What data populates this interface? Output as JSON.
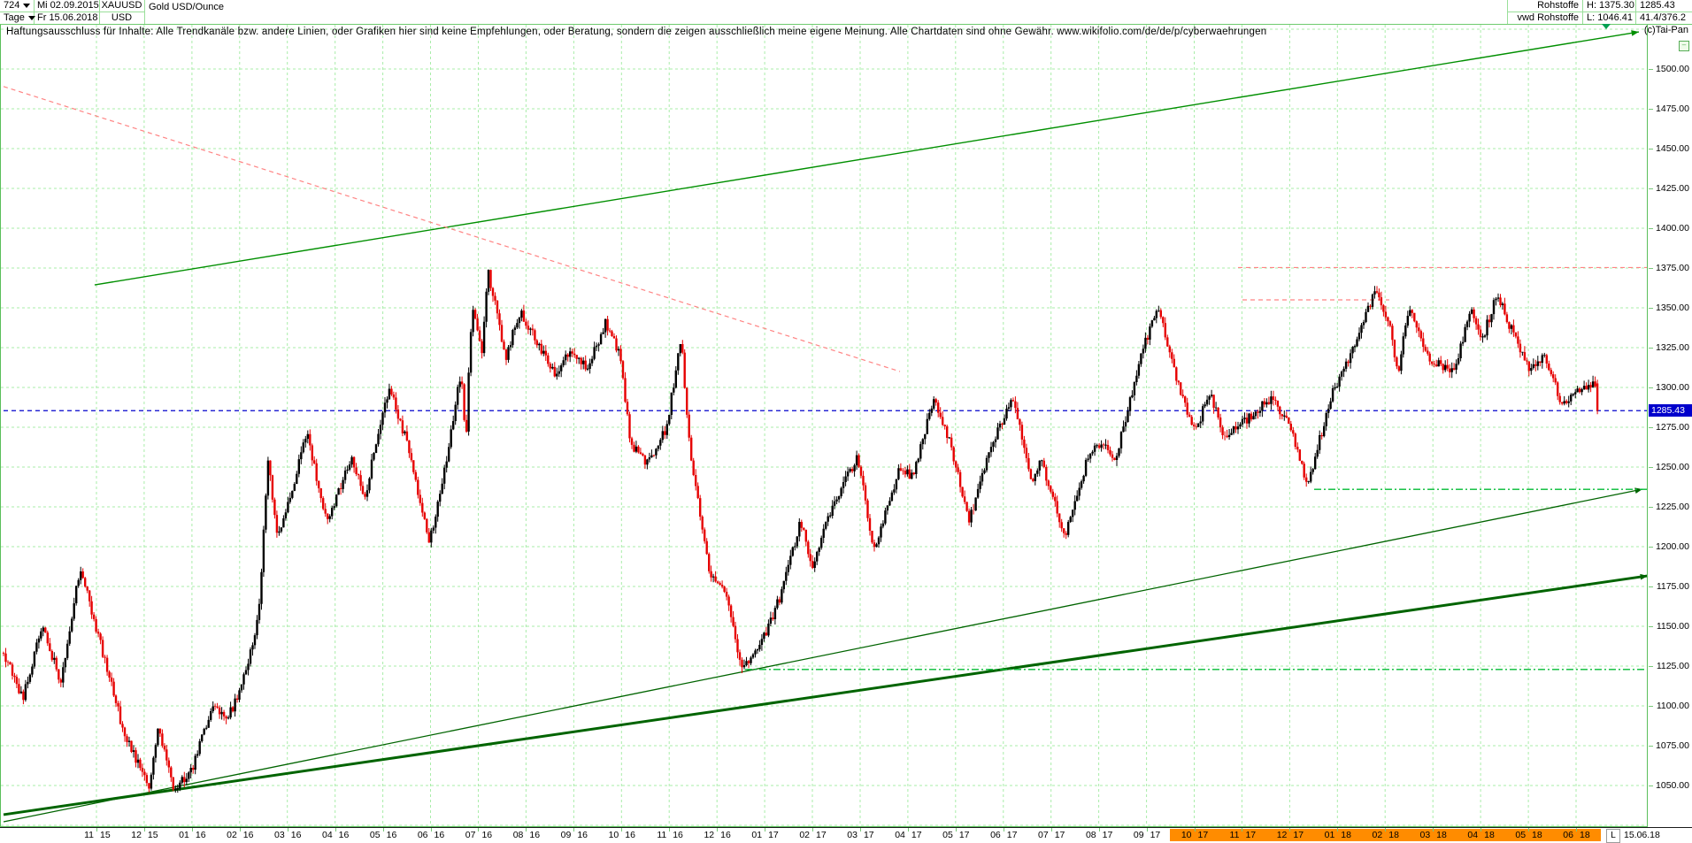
{
  "header": {
    "bars_count": "724",
    "period": "Tage",
    "date_from": "Mi 02.09.2015",
    "date_to": "Fr 15.06.2018",
    "symbol": "XAUUSD",
    "currency": "USD",
    "title": "Gold USD/Ounce",
    "group_row1": "Rohstoffe",
    "group_row2": "vwd Rohstoffe",
    "high_label": "H: 1375.30",
    "low_label": "L: 1046.41",
    "last_price": "1285.43",
    "misc_value": "41.4/376.2",
    "copyright": "(c)Tai-Pan"
  },
  "disclaimer": "Haftungsausschluss für Inhalte: Alle Trendkanäle bzw. andere Linien, oder Grafiken hier sind keine Empfehlungen, oder Beratung, sondern die zeigen ausschließlich meine eigene Meinung. Alle Chartdaten sind ohne Gewähr.  www.wikifolio.com/de/de/p/cyberwaehrungen",
  "axis": {
    "price_labels": [
      "1500.00",
      "1475.00",
      "1450.00",
      "1425.00",
      "1400.00",
      "1375.00",
      "1350.00",
      "1325.00",
      "1300.00",
      "1275.00",
      "1250.00",
      "1225.00",
      "1200.00",
      "1175.00",
      "1150.00",
      "1125.00",
      "1100.00",
      "1075.00",
      "1050.00"
    ],
    "month_labels": [
      "11 15",
      "12 15",
      "01 16",
      "02 16",
      "03 16",
      "04 16",
      "05 16",
      "06 16",
      "07 16",
      "08 16",
      "09 16",
      "10 16",
      "11 16",
      "12 16",
      "01 17",
      "02 17",
      "03 17",
      "04 17",
      "05 17",
      "06 17",
      "07 17",
      "08 17",
      "09 17",
      "10 17",
      "11 17",
      "12 17",
      "01 18",
      "02 18",
      "03 18",
      "04 18",
      "05 18",
      "06 18"
    ],
    "highlight_from_index": 23,
    "end_date": "15.06.18",
    "low_marker": "L",
    "last_price_label": "1285.43"
  },
  "colors": {
    "grid": "#a9eda9",
    "frame": "#5abf5a",
    "candle_up": "#000000",
    "candle_down": "#e60000",
    "trend_green": "#008f00",
    "trend_dark_green": "#006400",
    "dashdot_green": "#00bb33",
    "red_dashed": "#ff8484",
    "blue_line": "#0000cc",
    "blue_label_bg": "#0000cc",
    "orange_highlight": "#ff8c00"
  },
  "chart_data": {
    "type": "candlestick",
    "instrument": "XAUUSD",
    "title": "Gold USD/Ounce",
    "timeframe": "Tage",
    "date_start": "02.09.2015",
    "date_end": "15.06.2018",
    "bars": 724,
    "period_high": 1375.3,
    "period_low": 1046.41,
    "last_close": 1285.43,
    "y_axis": {
      "min": 1025,
      "max": 1530,
      "tick_step": 25,
      "grid": true
    },
    "price_path": [
      [
        0,
        1133
      ],
      [
        0.012,
        1104
      ],
      [
        0.024,
        1151
      ],
      [
        0.036,
        1115
      ],
      [
        0.048,
        1188
      ],
      [
        0.06,
        1142
      ],
      [
        0.075,
        1085
      ],
      [
        0.091,
        1048
      ],
      [
        0.097,
        1085
      ],
      [
        0.107,
        1047
      ],
      [
        0.119,
        1062
      ],
      [
        0.131,
        1100
      ],
      [
        0.14,
        1090
      ],
      [
        0.152,
        1120
      ],
      [
        0.16,
        1155
      ],
      [
        0.166,
        1255
      ],
      [
        0.172,
        1205
      ],
      [
        0.182,
        1240
      ],
      [
        0.19,
        1272
      ],
      [
        0.203,
        1215
      ],
      [
        0.218,
        1255
      ],
      [
        0.227,
        1232
      ],
      [
        0.239,
        1292
      ],
      [
        0.243,
        1298
      ],
      [
        0.254,
        1262
      ],
      [
        0.267,
        1202
      ],
      [
        0.278,
        1255
      ],
      [
        0.287,
        1310
      ],
      [
        0.29,
        1265
      ],
      [
        0.294,
        1355
      ],
      [
        0.3,
        1322
      ],
      [
        0.304,
        1374
      ],
      [
        0.315,
        1318
      ],
      [
        0.324,
        1348
      ],
      [
        0.337,
        1325
      ],
      [
        0.346,
        1308
      ],
      [
        0.355,
        1323
      ],
      [
        0.366,
        1312
      ],
      [
        0.378,
        1341
      ],
      [
        0.387,
        1320
      ],
      [
        0.393,
        1266
      ],
      [
        0.404,
        1252
      ],
      [
        0.416,
        1274
      ],
      [
        0.425,
        1332
      ],
      [
        0.431,
        1255
      ],
      [
        0.443,
        1185
      ],
      [
        0.454,
        1168
      ],
      [
        0.463,
        1123
      ],
      [
        0.476,
        1140
      ],
      [
        0.487,
        1168
      ],
      [
        0.5,
        1216
      ],
      [
        0.507,
        1188
      ],
      [
        0.521,
        1228
      ],
      [
        0.536,
        1256
      ],
      [
        0.546,
        1198
      ],
      [
        0.563,
        1251
      ],
      [
        0.57,
        1244
      ],
      [
        0.584,
        1293
      ],
      [
        0.594,
        1264
      ],
      [
        0.606,
        1216
      ],
      [
        0.619,
        1262
      ],
      [
        0.633,
        1294
      ],
      [
        0.645,
        1242
      ],
      [
        0.651,
        1254
      ],
      [
        0.666,
        1206
      ],
      [
        0.682,
        1262
      ],
      [
        0.69,
        1266
      ],
      [
        0.697,
        1252
      ],
      [
        0.715,
        1324
      ],
      [
        0.724,
        1352
      ],
      [
        0.739,
        1294
      ],
      [
        0.748,
        1273
      ],
      [
        0.757,
        1298
      ],
      [
        0.766,
        1268
      ],
      [
        0.778,
        1278
      ],
      [
        0.796,
        1294
      ],
      [
        0.807,
        1276
      ],
      [
        0.818,
        1238
      ],
      [
        0.834,
        1298
      ],
      [
        0.846,
        1322
      ],
      [
        0.86,
        1360
      ],
      [
        0.869,
        1342
      ],
      [
        0.875,
        1309
      ],
      [
        0.882,
        1352
      ],
      [
        0.894,
        1317
      ],
      [
        0.91,
        1311
      ],
      [
        0.921,
        1350
      ],
      [
        0.927,
        1328
      ],
      [
        0.937,
        1358
      ],
      [
        0.948,
        1332
      ],
      [
        0.957,
        1312
      ],
      [
        0.966,
        1320
      ],
      [
        0.978,
        1289
      ],
      [
        0.987,
        1299
      ],
      [
        0.996,
        1300
      ],
      [
        0.9985,
        1303
      ],
      [
        1,
        1285.43
      ]
    ],
    "trendlines": [
      {
        "name": "upper-channel-line",
        "style": "solid",
        "width": 1.4,
        "color": "#008f00",
        "arrow": true,
        "points": [
          [
            0.0554,
            1364.4
          ],
          [
            0.9946,
            1523.3
          ]
        ]
      },
      {
        "name": "lower-support-thin",
        "style": "solid",
        "width": 1.3,
        "color": "#006400",
        "arrow": true,
        "points": [
          [
            0.0,
            1027.2
          ],
          [
            0.9968,
            1236.1
          ]
        ]
      },
      {
        "name": "long-term-support-thick",
        "style": "solid",
        "width": 3,
        "color": "#006400",
        "arrow": true,
        "points": [
          [
            0.0,
            1031.7
          ],
          [
            1.0,
            1181.7
          ]
        ]
      },
      {
        "name": "descending-resistance",
        "style": "dashed",
        "width": 1.2,
        "color": "#ff8484",
        "arrow": false,
        "points": [
          [
            0.0,
            1489
          ],
          [
            0.5452,
            1310
          ]
        ]
      },
      {
        "name": "period-high-line",
        "style": "dashed",
        "width": 1.2,
        "color": "#ff8484",
        "arrow": false,
        "points": [
          [
            0.7508,
            1375.3
          ],
          [
            1.0,
            1375.3
          ]
        ]
      },
      {
        "name": "resistance-1355",
        "style": "dashed",
        "width": 1.2,
        "color": "#ff8484",
        "arrow": false,
        "points": [
          [
            0.7535,
            1355
          ],
          [
            0.8428,
            1355
          ]
        ]
      },
      {
        "name": "support-dec16-low",
        "style": "dashdot",
        "width": 1.4,
        "color": "#00bb33",
        "arrow": false,
        "points": [
          [
            0.451,
            1122.9
          ],
          [
            1.0,
            1122.9
          ]
        ]
      },
      {
        "name": "support-dec17-low",
        "style": "dashdot",
        "width": 1.4,
        "color": "#00bb33",
        "arrow": false,
        "points": [
          [
            0.7971,
            1236
          ],
          [
            1.0,
            1236
          ]
        ]
      },
      {
        "name": "last-price-line",
        "style": "dashed",
        "width": 1.3,
        "color": "#0000cc",
        "arrow": false,
        "points": [
          [
            0.0,
            1285.43
          ],
          [
            1.0,
            1285.43
          ]
        ]
      }
    ]
  }
}
